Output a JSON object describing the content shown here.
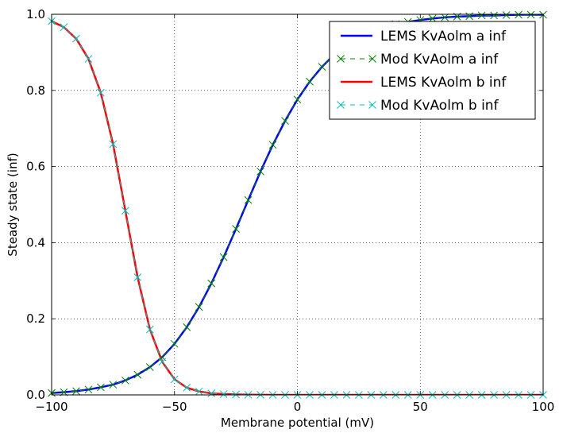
{
  "chart_data": {
    "type": "line",
    "title": "",
    "xlabel": "Membrane potential (mV)",
    "ylabel": "Steady state (inf)",
    "xlim": [
      -100,
      100
    ],
    "ylim": [
      0,
      1
    ],
    "xticks": [
      -100,
      -50,
      0,
      50,
      100
    ],
    "xtick_labels": [
      "−100",
      "−50",
      "0",
      "50",
      "100"
    ],
    "yticks": [
      0,
      0.2,
      0.4,
      0.6,
      0.8,
      1.0
    ],
    "ytick_labels": [
      "0.0",
      "0.2",
      "0.4",
      "0.6",
      "0.8",
      "1.0"
    ],
    "grid": true,
    "legend_position": "top-right",
    "x": [
      -100,
      -95,
      -90,
      -85,
      -80,
      -75,
      -70,
      -65,
      -60,
      -55,
      -50,
      -45,
      -40,
      -35,
      -30,
      -25,
      -20,
      -15,
      -10,
      -5,
      0,
      5,
      10,
      15,
      20,
      25,
      30,
      35,
      40,
      45,
      50,
      55,
      60,
      65,
      70,
      75,
      80,
      85,
      90,
      95,
      100
    ],
    "series": [
      {
        "name": "LEMS KvAolm a inf",
        "style": "line",
        "color": "#0000ff",
        "values": [
          0.005,
          0.007,
          0.01,
          0.014,
          0.02,
          0.027,
          0.038,
          0.053,
          0.073,
          0.099,
          0.134,
          0.178,
          0.231,
          0.293,
          0.362,
          0.436,
          0.512,
          0.587,
          0.657,
          0.72,
          0.776,
          0.823,
          0.862,
          0.894,
          0.919,
          0.938,
          0.953,
          0.965,
          0.974,
          0.98,
          0.985,
          0.989,
          0.992,
          0.994,
          0.995,
          0.997,
          0.997,
          0.998,
          0.999,
          0.999,
          0.999
        ]
      },
      {
        "name": "Mod KvAolm a inf",
        "style": "dashed-x",
        "color": "#008000",
        "values": [
          0.005,
          0.007,
          0.01,
          0.014,
          0.02,
          0.027,
          0.038,
          0.053,
          0.073,
          0.099,
          0.134,
          0.178,
          0.231,
          0.293,
          0.362,
          0.436,
          0.512,
          0.587,
          0.657,
          0.72,
          0.776,
          0.823,
          0.862,
          0.894,
          0.919,
          0.938,
          0.953,
          0.965,
          0.974,
          0.98,
          0.985,
          0.989,
          0.992,
          0.994,
          0.995,
          0.997,
          0.997,
          0.998,
          0.999,
          0.999,
          0.999
        ]
      },
      {
        "name": "LEMS KvAolm b inf",
        "style": "line",
        "color": "#ff0000",
        "values": [
          0.982,
          0.966,
          0.936,
          0.883,
          0.794,
          0.659,
          0.484,
          0.309,
          0.172,
          0.087,
          0.041,
          0.019,
          0.009,
          0.004,
          0.002,
          0.001,
          0.0004,
          0.0002,
          0.0001,
          4e-05,
          2e-05,
          1e-05,
          0.0,
          0.0,
          0.0,
          0.0,
          0.0,
          0.0,
          0.0,
          0.0,
          0.0,
          0.0,
          0.0,
          0.0,
          0.0,
          0.0,
          0.0,
          0.0,
          0.0,
          0.0,
          0.0
        ]
      },
      {
        "name": "Mod KvAolm b inf",
        "style": "dashed-x",
        "color": "#00bfbf",
        "values": [
          0.982,
          0.966,
          0.936,
          0.883,
          0.794,
          0.659,
          0.484,
          0.309,
          0.172,
          0.087,
          0.041,
          0.019,
          0.009,
          0.004,
          0.002,
          0.001,
          0.0004,
          0.0002,
          0.0001,
          4e-05,
          2e-05,
          1e-05,
          0.0,
          0.0,
          0.0,
          0.0,
          0.0,
          0.0,
          0.0,
          0.0,
          0.0,
          0.0,
          0.0,
          0.0,
          0.0,
          0.0,
          0.0,
          0.0,
          0.0,
          0.0,
          0.0
        ]
      }
    ]
  }
}
